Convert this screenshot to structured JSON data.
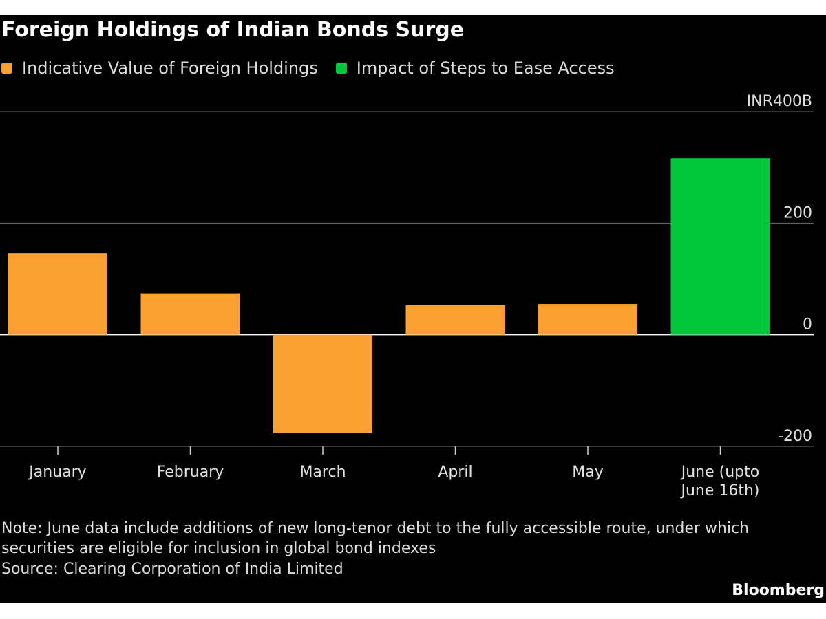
{
  "chart_data": {
    "type": "bar",
    "title": "Foreign Holdings of Indian Bonds Surge",
    "categories": [
      "January",
      "February",
      "March",
      "April",
      "May",
      "June (upto June 16th)"
    ],
    "series": [
      {
        "name": "Indicative Value of Foreign Holdings",
        "color": "#f9a030",
        "values": [
          146,
          74,
          -176,
          53,
          55,
          null
        ]
      },
      {
        "name": "Impact of Steps to Ease Access",
        "color": "#00c83a",
        "values": [
          null,
          null,
          null,
          null,
          null,
          316
        ]
      }
    ],
    "y_ticks": [
      "INR400B",
      "200",
      "0",
      "-200"
    ],
    "ylim": [
      -200,
      400
    ],
    "grid": true,
    "legend": "top-left"
  },
  "note": "Note: June data include additions of new long-tenor debt to the fully accessible route, under which securities are eligible for inclusion in global bond indexes",
  "source": "Source: Clearing Corporation of India Limited",
  "brand": "Bloomberg",
  "colors": {
    "background": "#000000",
    "grid": "#6f6f6f",
    "zero_line": "#ffffff"
  }
}
